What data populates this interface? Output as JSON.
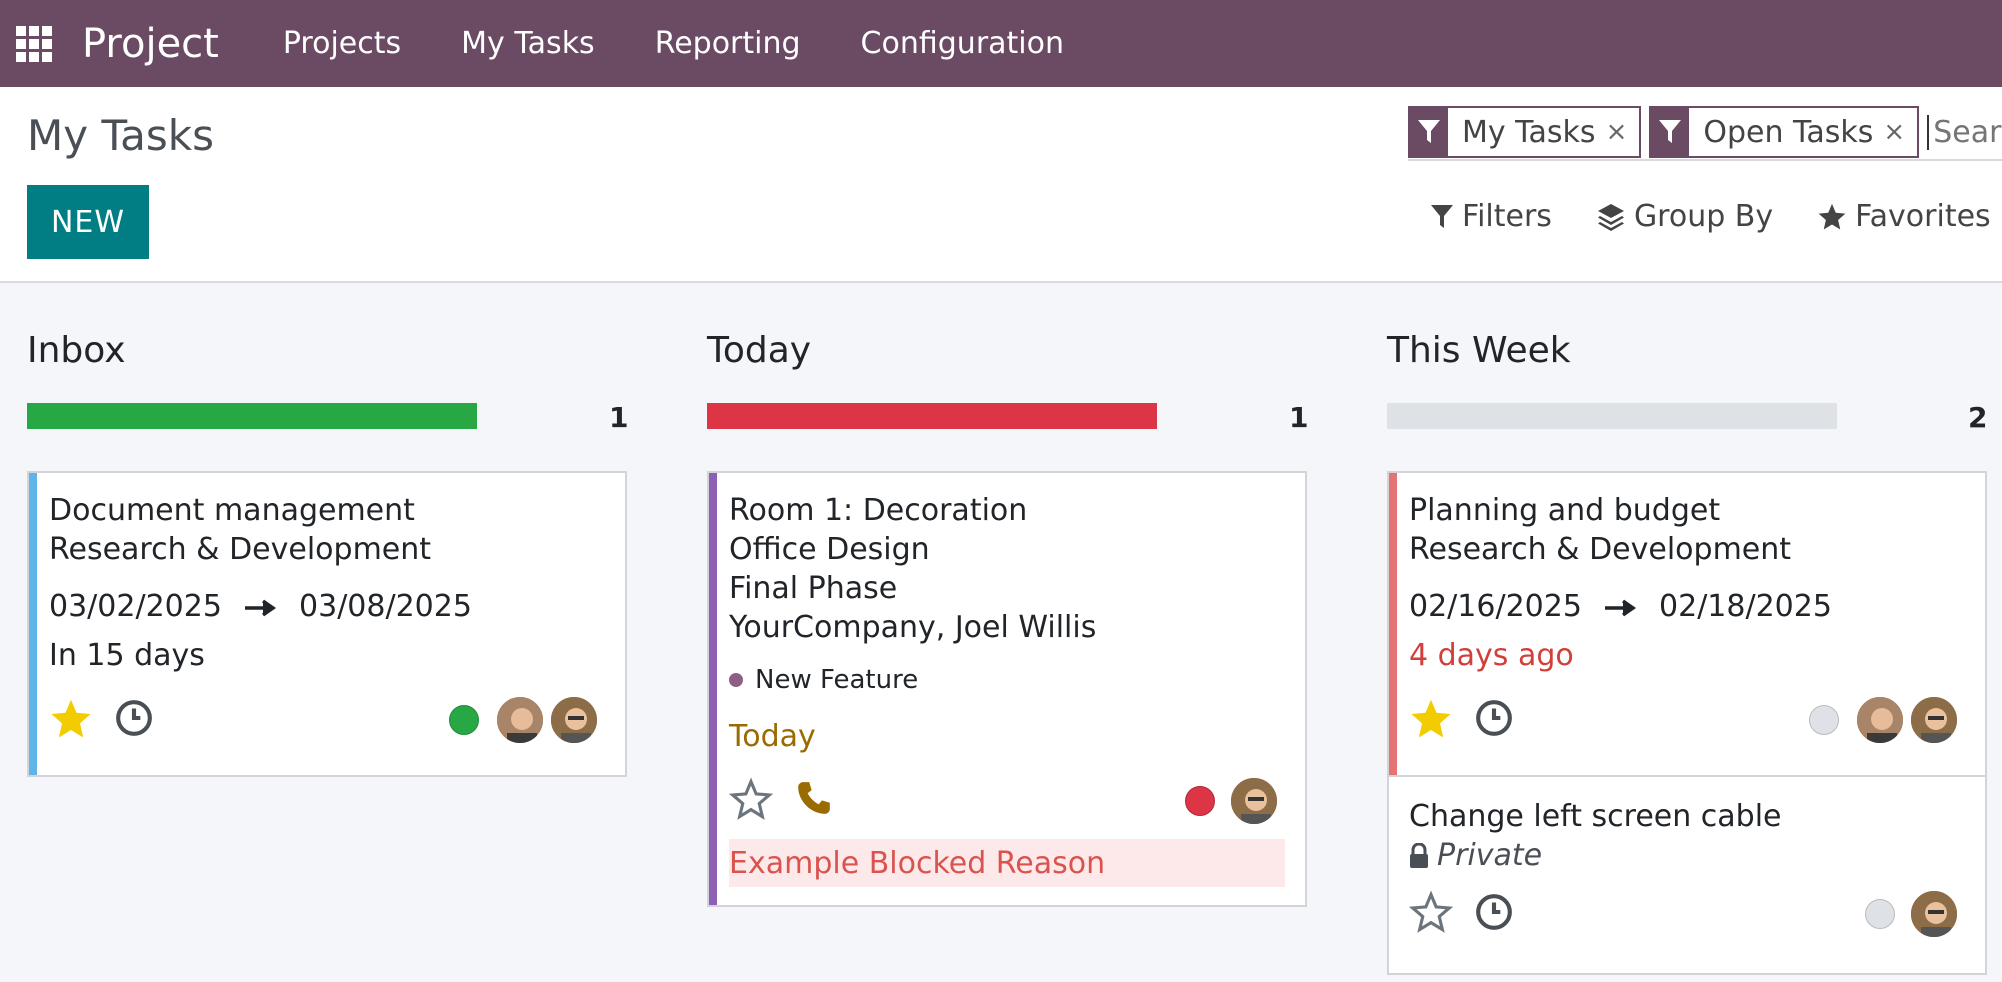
{
  "nav": {
    "brand": "Project",
    "items": [
      "Projects",
      "My Tasks",
      "Reporting",
      "Configuration"
    ]
  },
  "control": {
    "title": "My Tasks",
    "new_label": "NEW",
    "facets": [
      "My Tasks",
      "Open Tasks"
    ],
    "facet_remove": "×",
    "search_placeholder": "Search...",
    "options": [
      "Filters",
      "Group By",
      "Favorites"
    ]
  },
  "columns": [
    {
      "title": "Inbox",
      "count": "1",
      "bar_color": "#28a745"
    },
    {
      "title": "Today",
      "count": "1",
      "bar_color": "#dc3545"
    },
    {
      "title": "This Week",
      "count": "2",
      "bar_color": "#dee2e6"
    }
  ],
  "cards": {
    "doc": {
      "name": "Document management",
      "project": "Research & Development",
      "date_start": "03/02/2025",
      "date_end": "03/08/2025",
      "deadline": "In 15 days",
      "stripe": "#5fb4e8",
      "status_color": "#28a745",
      "starred": true
    },
    "room": {
      "name": "Room 1: Decoration",
      "project": "Office Design",
      "stage": "Final Phase",
      "customer": "YourCompany, Joel Willis",
      "tag": "New Feature",
      "tag_color": "#8d5f85",
      "deadline": "Today",
      "blocked": "Example Blocked Reason",
      "stripe": "#8e5fb5",
      "status_color": "#dc3545",
      "starred": false
    },
    "plan": {
      "name": "Planning and budget",
      "project": "Research & Development",
      "date_start": "02/16/2025",
      "date_end": "02/18/2025",
      "deadline": "4 days ago",
      "stripe": "#e57373",
      "status_color": "#dee2e6",
      "starred": true
    },
    "cable": {
      "name": "Change left screen cable",
      "privacy": "Private",
      "status_color": "#dee2e6",
      "starred": false
    }
  },
  "colors": {
    "nav": "#6b4a64",
    "primary": "#017e84",
    "star": "#f3cc00",
    "overdue": "#d23f3a",
    "today": "#9a6b00"
  }
}
